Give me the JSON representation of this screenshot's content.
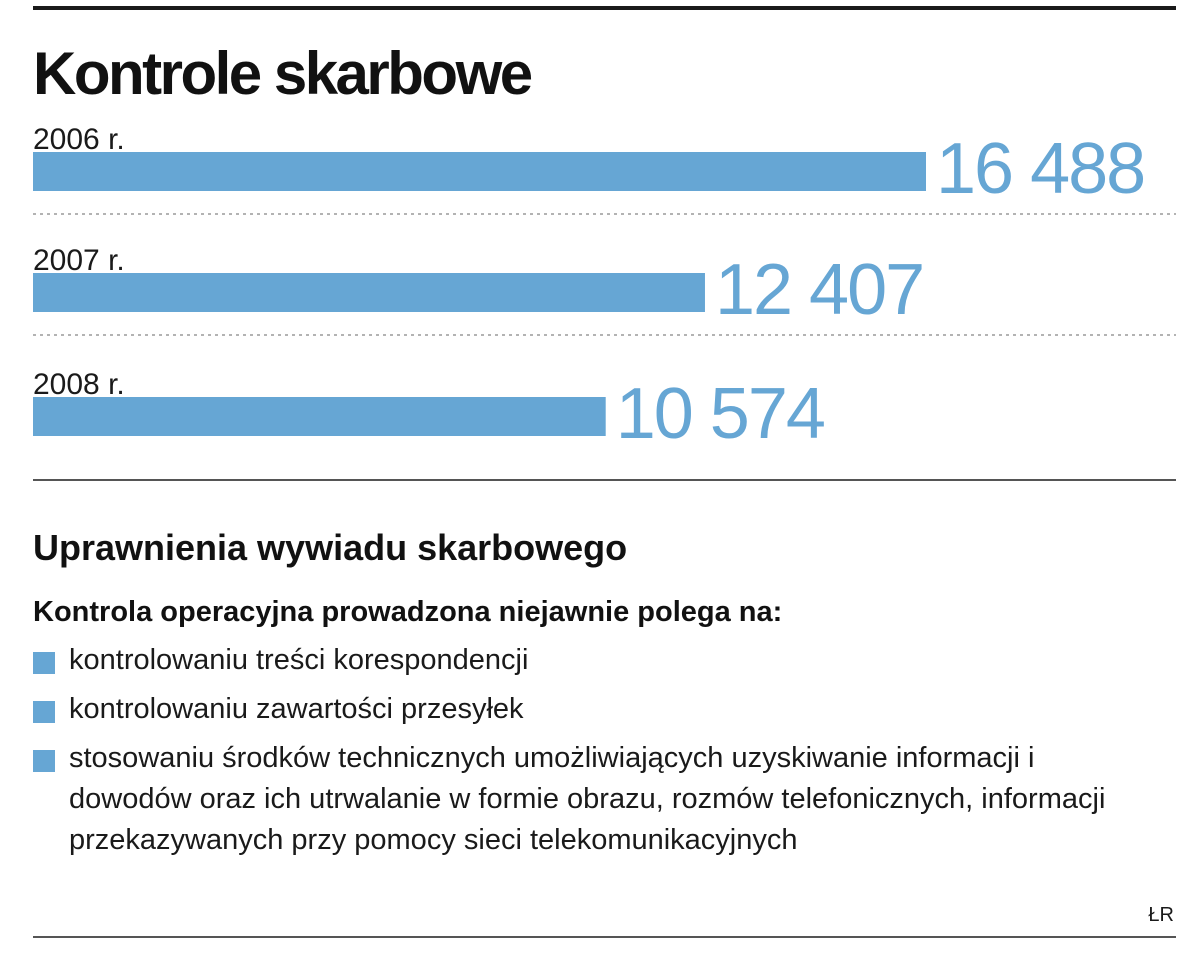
{
  "header": {
    "title": "Kontrole skarbowe"
  },
  "chart_data": {
    "type": "bar",
    "orientation": "horizontal",
    "categories": [
      "2006 r.",
      "2007 r.",
      "2008 r."
    ],
    "values": [
      16488,
      12407,
      10574
    ],
    "value_labels": [
      "16 488",
      "12 407",
      "10 574"
    ],
    "xlim": [
      0,
      16488
    ],
    "bar_color": "#66a6d4",
    "grid": false,
    "title": "Kontrole skarbowe"
  },
  "section": {
    "title": "Uprawnienia wywiadu skarbowego",
    "intro": "Kontrola operacyjna prowadzona niejawnie polega na:",
    "items": [
      "kontrolowaniu treści korespondencji",
      "kontrolowaniu zawartości przesyłek",
      "stosowaniu środków technicznych umożliwiających uzyskiwanie informacji i dowodów oraz ich utrwalanie w formie obrazu, rozmów telefonicznych, informacji przekazywanych przy pomocy sieci telekomunikacyjnych"
    ]
  },
  "source": "ŁR"
}
